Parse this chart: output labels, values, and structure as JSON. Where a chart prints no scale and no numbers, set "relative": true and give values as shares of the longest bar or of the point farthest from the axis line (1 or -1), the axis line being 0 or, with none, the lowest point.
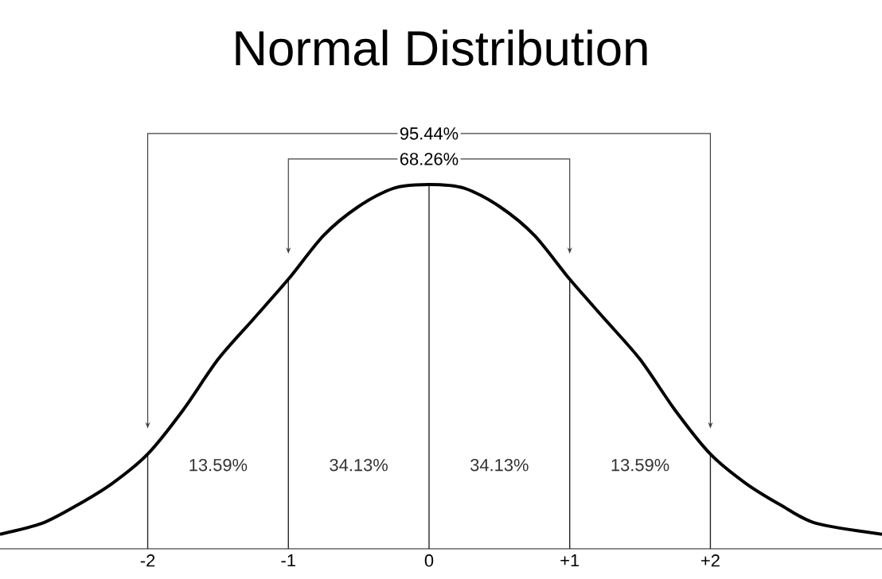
{
  "chart_data": {
    "type": "line",
    "title": "Normal Distribution",
    "relative": true,
    "x": [
      -3.05,
      -2.75,
      -2.5,
      -2.25,
      -2,
      -1.75,
      -1.5,
      -1.25,
      -1,
      -0.75,
      -0.5,
      -0.25,
      0,
      0.25,
      0.5,
      0.75,
      1,
      1.25,
      1.5,
      1.75,
      2,
      2.25,
      2.5,
      2.75,
      3.22
    ],
    "values": [
      0.04,
      0.07,
      0.12,
      0.18,
      0.26,
      0.38,
      0.52,
      0.63,
      0.74,
      0.86,
      0.94,
      0.99,
      1,
      0.99,
      0.94,
      0.86,
      0.74,
      0.63,
      0.52,
      0.38,
      0.26,
      0.18,
      0.12,
      0.07,
      0.04
    ],
    "color": "#000000",
    "marker": "none",
    "line_style": "solid",
    "xlim": [
      -3.05,
      3.22
    ],
    "xticks": [
      -2,
      -1,
      0,
      {
        "value": 1,
        "label": "+1"
      },
      {
        "value": 2,
        "label": "+2"
      }
    ],
    "ref_lines": [
      {
        "axis": "x",
        "value": -2
      },
      {
        "axis": "x",
        "value": -1
      },
      {
        "axis": "x",
        "value": 0
      },
      {
        "axis": "x",
        "value": 1
      },
      {
        "axis": "x",
        "value": 2
      }
    ],
    "annotations": [
      "95.44%",
      "68.26%",
      "13.59%",
      "34.13%",
      "34.13%",
      "13.59%"
    ]
  }
}
